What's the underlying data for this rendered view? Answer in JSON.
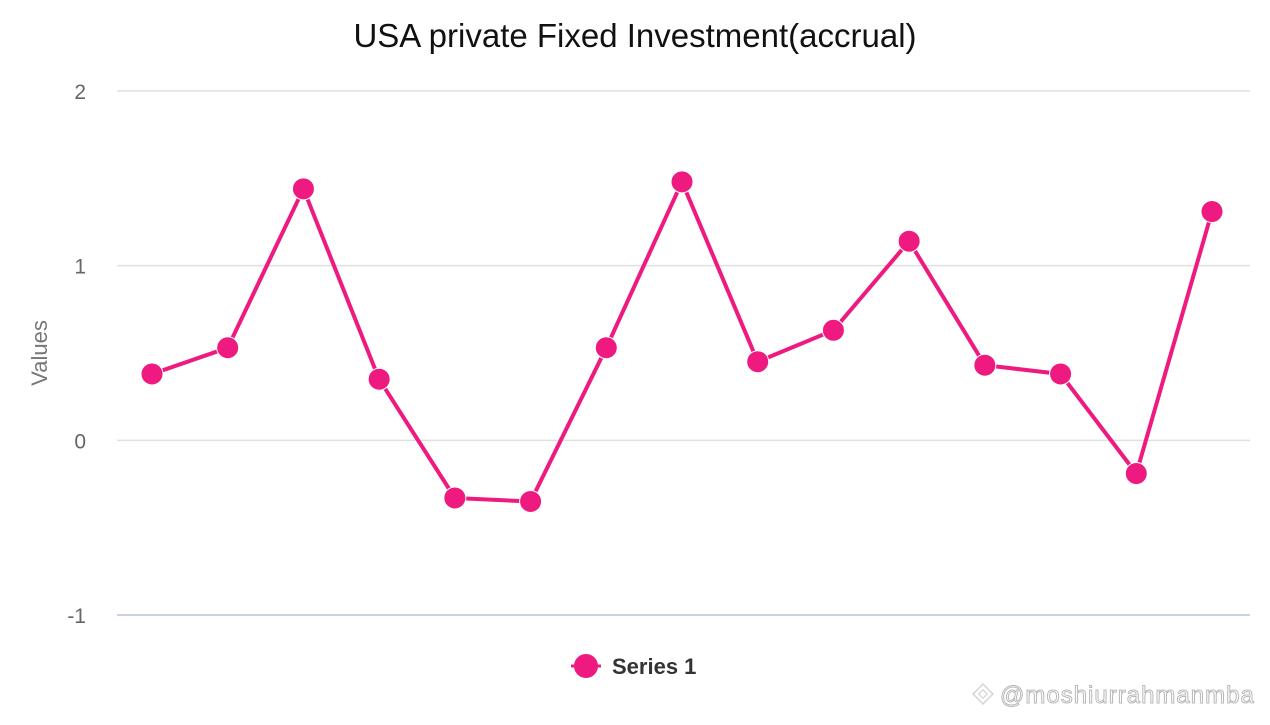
{
  "chart_data": {
    "type": "line",
    "title": "USA private Fixed Investment(accrual)",
    "xlabel": "",
    "ylabel": "Values",
    "ylim": [
      -1,
      2
    ],
    "yticks": [
      -1,
      0,
      1,
      2
    ],
    "grid": true,
    "legend_position": "bottom",
    "series": [
      {
        "name": "Series 1",
        "color": "#ee1a7f",
        "values": [
          0.38,
          0.53,
          1.44,
          0.35,
          -0.33,
          -0.35,
          0.53,
          1.48,
          0.45,
          0.63,
          1.14,
          0.43,
          0.38,
          -0.19,
          1.31
        ]
      }
    ]
  },
  "watermark": {
    "text": "@moshiurrahmanmba",
    "icon": "binance-diamond-icon"
  },
  "colors": {
    "grid": "#e0e0e0",
    "baseline": "#c8d3de",
    "series": "#ee1a7f"
  }
}
